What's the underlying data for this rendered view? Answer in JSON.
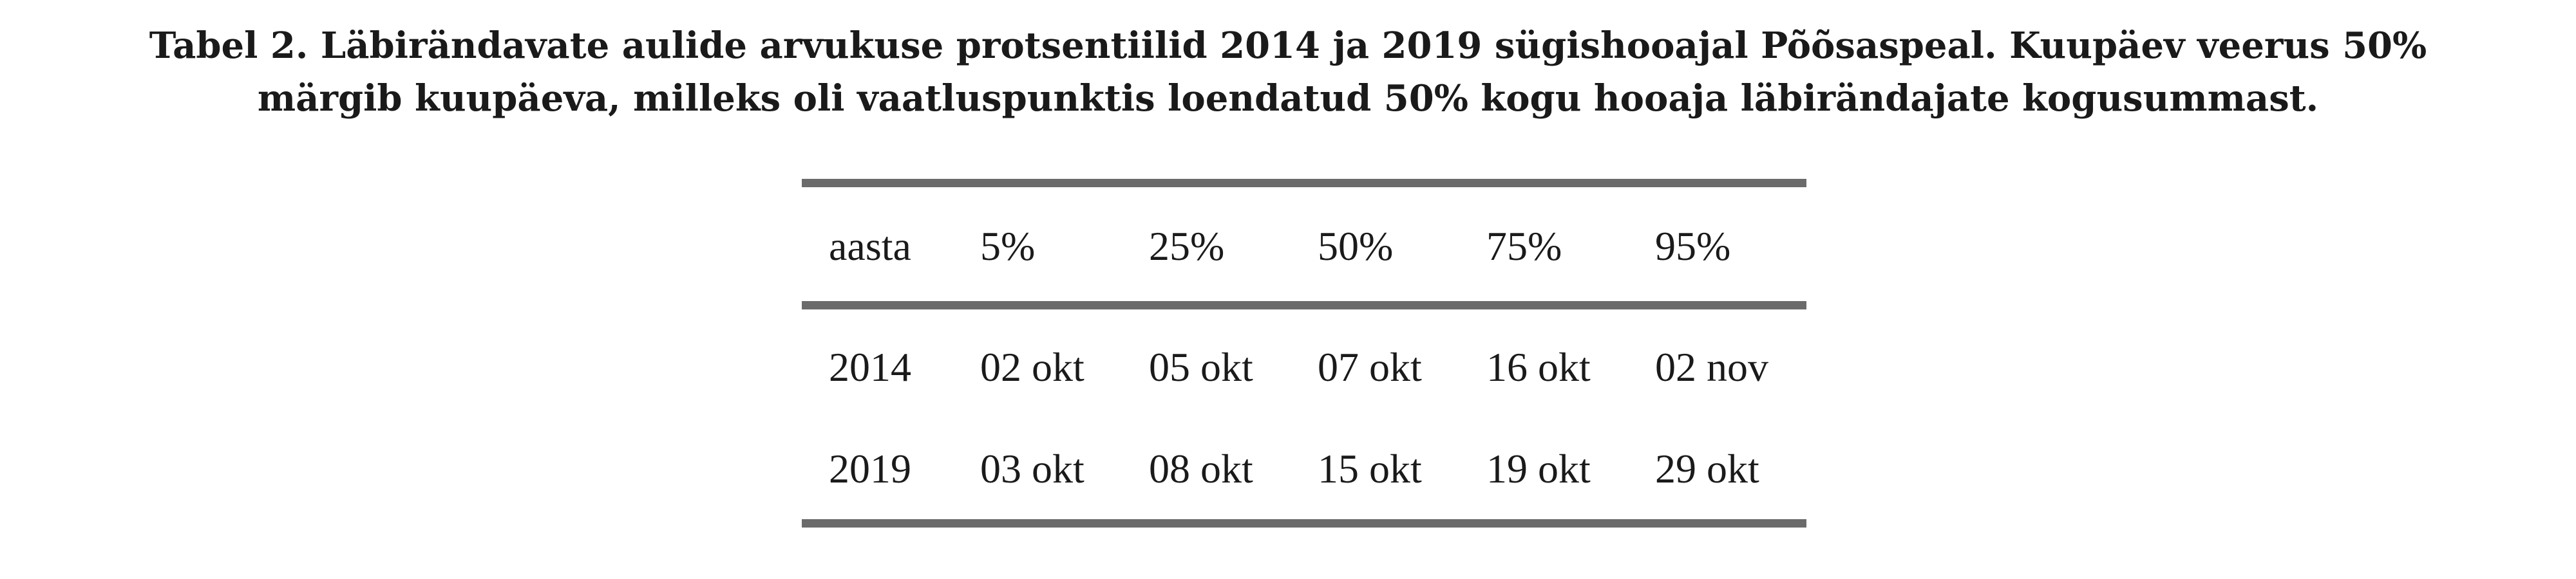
{
  "caption": {
    "line1": "Tabel  2.  Läbirändavate aulide arvukuse protsentiilid 2014 ja 2019 sügishooajal Põõsaspeal. Kuupäev veerus 50%",
    "line2": "märgib kuupäeva, milleks oli vaatluspunktis loendatud 50% kogu hooaja läbirändajate kogusummast."
  },
  "table": {
    "headers": [
      "aasta",
      "5%",
      "25%",
      "50%",
      "75%",
      "95%"
    ],
    "rows": [
      [
        "2014",
        "02 okt",
        "05 okt",
        "07 okt",
        "16 okt",
        "02 nov"
      ],
      [
        "2019",
        "03 okt",
        "08 okt",
        "15 okt",
        "19 okt",
        "29 okt"
      ]
    ]
  },
  "colors": {
    "text": "#1a1a1a",
    "rule": "#6b6b6b"
  }
}
